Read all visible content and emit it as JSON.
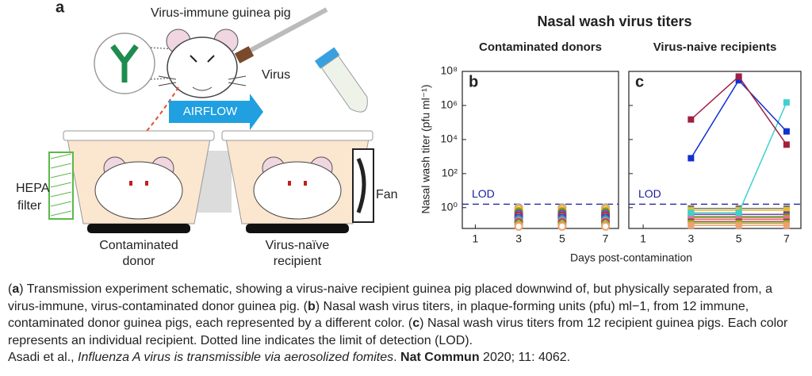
{
  "figure_a": {
    "panel": "a",
    "top_label": "Virus-immune guinea pig",
    "virus_label": "Virus",
    "airflow_label": "AIRFLOW",
    "hepa_label": [
      "HEPA",
      "filter"
    ],
    "fan_label": "Fan",
    "donor_label": [
      "Contaminated",
      "donor"
    ],
    "recipient_label": [
      "Virus-naïve",
      "recipient"
    ]
  },
  "panel_bc": {
    "title": "Nasal wash virus titers",
    "ylabel": "Nasal wash titer (pfu ml⁻¹)",
    "xlabel": "Days post-contamination"
  },
  "chart_data": [
    {
      "type": "scatter",
      "panel": "b",
      "title": "Contaminated donors",
      "x": [
        3,
        5,
        7
      ],
      "xlim": [
        0.4,
        7.6
      ],
      "xticks": [
        1,
        3,
        5,
        7
      ],
      "yscale": "log",
      "ylim": [
        0.06,
        100000000
      ],
      "yticks": [
        {
          "value": 1,
          "label": "10⁰"
        },
        {
          "value": 100,
          "label": "10²"
        },
        {
          "value": 10000,
          "label": "10⁴"
        },
        {
          "value": 1000000,
          "label": "10⁶"
        },
        {
          "value": 100000000,
          "label": "10⁸"
        }
      ],
      "lod": {
        "value": 1.6,
        "label": "LOD"
      },
      "series": [
        {
          "color": "#aaaaaa",
          "values": [
            1.0,
            1.0,
            1.0
          ]
        },
        {
          "color": "#e8c020",
          "values": [
            0.8,
            0.8,
            0.8
          ]
        },
        {
          "color": "#f08020",
          "values": [
            0.6,
            0.6,
            0.6
          ]
        },
        {
          "color": "#30a040",
          "values": [
            0.5,
            0.5,
            0.5
          ]
        },
        {
          "color": "#8040b0",
          "values": [
            0.4,
            0.4,
            0.4
          ]
        },
        {
          "color": "#d02828",
          "values": [
            0.32,
            0.32,
            0.32
          ]
        },
        {
          "color": "#2050d0",
          "values": [
            0.25,
            0.25,
            0.25
          ]
        },
        {
          "color": "#20a0a0",
          "values": [
            0.2,
            0.2,
            0.2
          ]
        },
        {
          "color": "#e070b0",
          "values": [
            0.16,
            0.16,
            0.16
          ]
        },
        {
          "color": "#905030",
          "values": [
            0.13,
            0.13,
            0.13
          ]
        },
        {
          "color": "#a0b030",
          "values": [
            0.1,
            0.1,
            0.1
          ]
        },
        {
          "color": "#f0a070",
          "values": [
            0.08,
            0.08,
            0.08
          ]
        }
      ]
    },
    {
      "type": "line",
      "panel": "c",
      "title": "Virus-naive recipients",
      "x": [
        3,
        5,
        7
      ],
      "xlim": [
        0.4,
        7.6
      ],
      "xticks": [
        1,
        3,
        5,
        7
      ],
      "yscale": "log",
      "ylim": [
        0.06,
        100000000
      ],
      "lod": {
        "value": 1.6,
        "label": "LOD"
      },
      "series": [
        {
          "color": "#777777",
          "values": [
            0.9,
            0.9,
            0.9
          ]
        },
        {
          "color": "#e8c020",
          "values": [
            0.7,
            0.7,
            0.7
          ]
        },
        {
          "color": "#8040b0",
          "values": [
            0.4,
            0.4,
            0.4
          ]
        },
        {
          "color": "#30a040",
          "values": [
            0.3,
            0.3,
            0.3
          ]
        },
        {
          "color": "#f08020",
          "values": [
            0.25,
            0.25,
            0.25
          ]
        },
        {
          "color": "#e070b0",
          "values": [
            0.2,
            0.2,
            0.2
          ]
        },
        {
          "color": "#905030",
          "values": [
            0.15,
            0.15,
            0.15
          ]
        },
        {
          "color": "#a0b030",
          "values": [
            0.12,
            0.12,
            0.12
          ]
        },
        {
          "color": "#f0a070",
          "values": [
            0.09,
            0.09,
            0.09
          ]
        },
        {
          "color": "#40d0d0",
          "values": [
            0.5,
            0.5,
            1500000
          ]
        },
        {
          "color": "#1030d0",
          "values": [
            800,
            30000000,
            30000
          ]
        },
        {
          "color": "#a02040",
          "values": [
            150000,
            50000000,
            5000
          ]
        }
      ]
    }
  ],
  "caption": {
    "paragraph": [
      "(",
      "a",
      ") Transmission experiment schematic, showing a virus-naive recipient guinea pig placed downwind of, but physically separated from, a virus-immune, virus-contaminated donor guinea pig. (",
      "b",
      ") Nasal wash virus titers, in plaque-forming units (pfu) ml−1, from 12 immune, contaminated donor guinea pigs, each represented by a different color. (",
      "c",
      ") Nasal wash virus titers from 12 recipient guinea pigs. Each color represents an individual recipient. Dotted line indicates the limit of detection (LOD)."
    ],
    "citation": [
      "Asadi et al., ",
      "Influenza A virus is transmissible via aerosolized fomites",
      ". ",
      "Nat Commun",
      " 2020; 11: 4062."
    ]
  }
}
